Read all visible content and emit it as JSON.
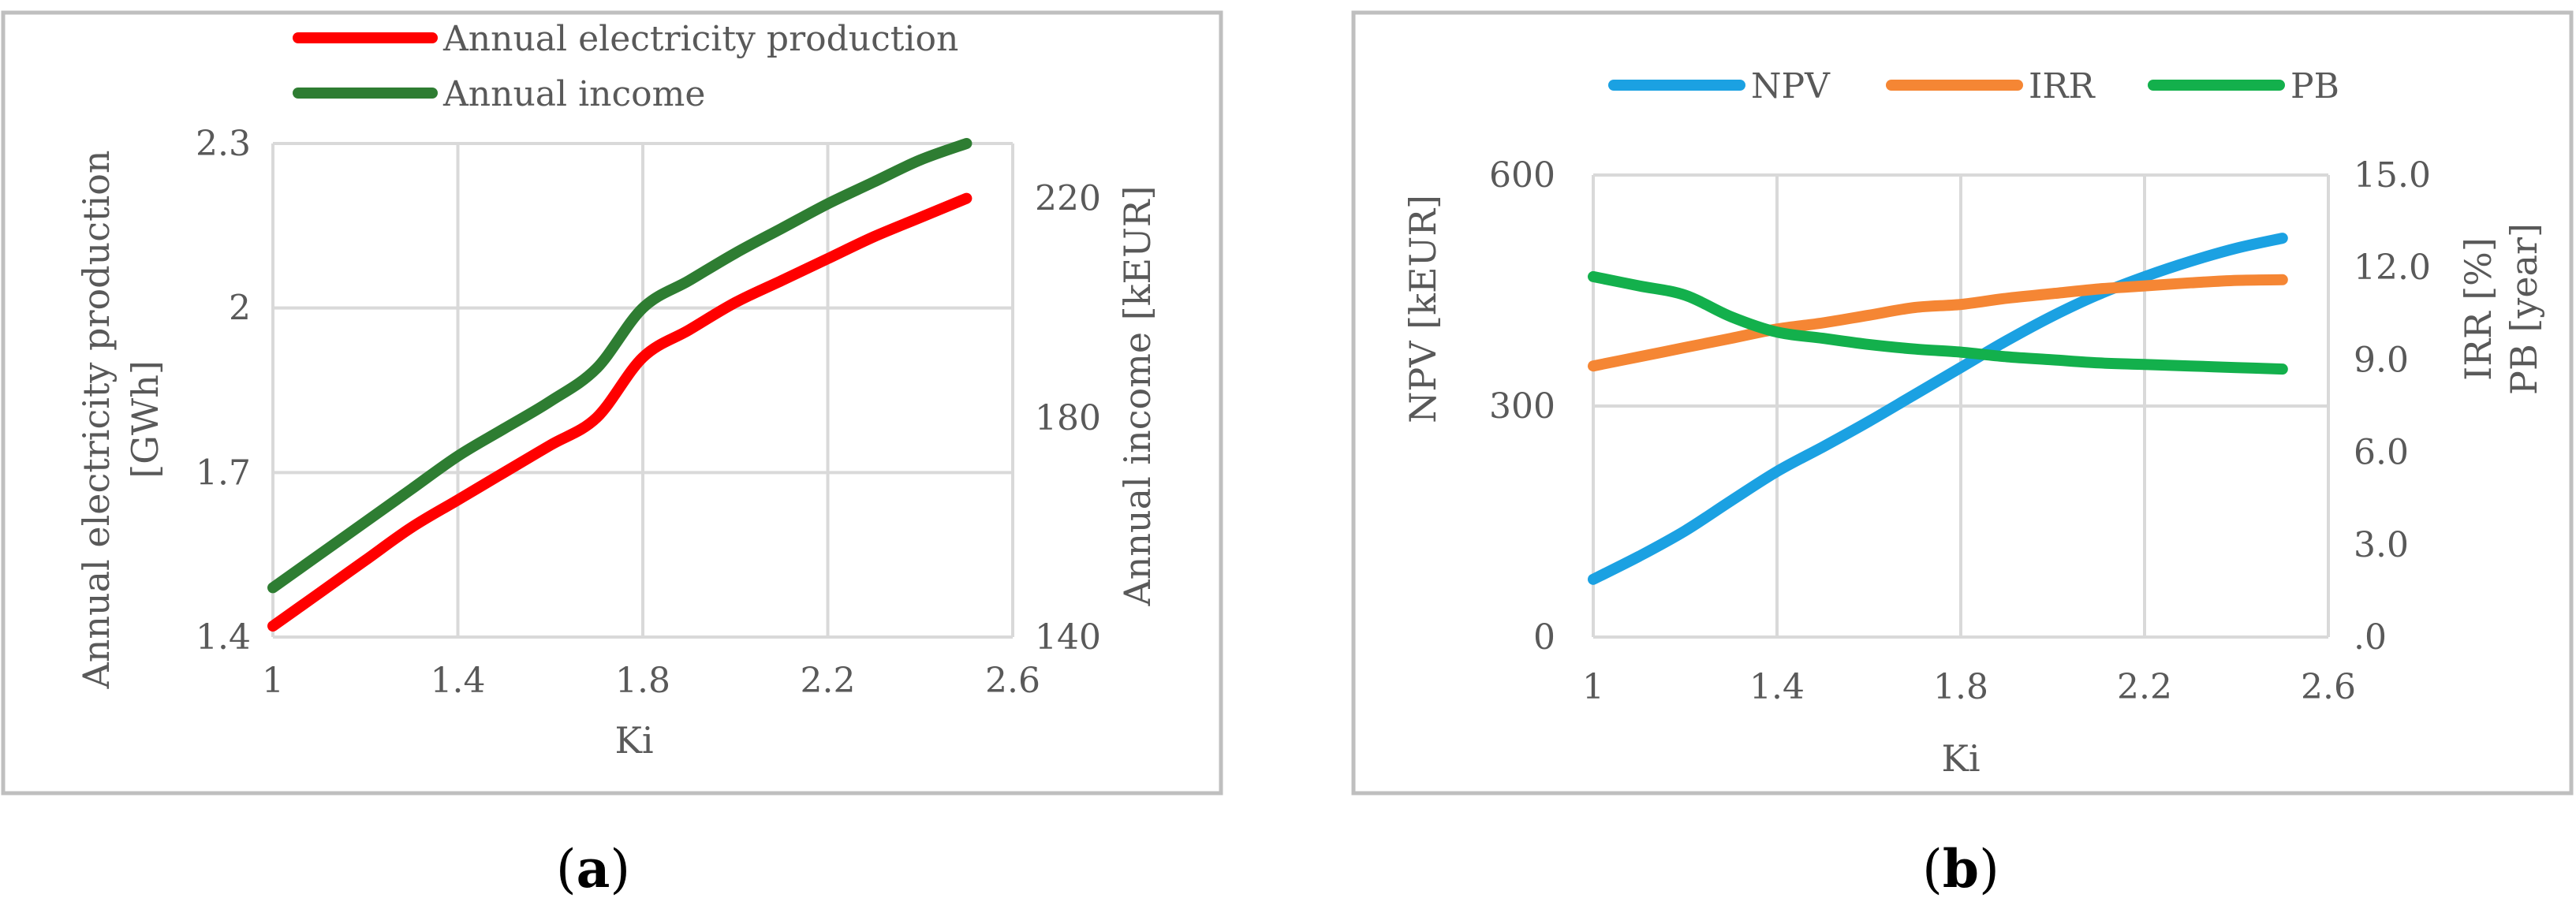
{
  "colors": {
    "production": "#ff0000",
    "income": "#2e7d32",
    "npv": "#1ba1e2",
    "irr": "#f58634",
    "pb": "#13b04c",
    "grid": "#d9d9d9",
    "text": "#595959",
    "frame": "#bfbfbf"
  },
  "chart_data": [
    {
      "id": "a",
      "type": "line",
      "panel_label_prefix": "(",
      "panel_label_letter": "a",
      "panel_label_suffix": ")",
      "legend_position": "top",
      "x": [
        1.0,
        1.1,
        1.2,
        1.3,
        1.4,
        1.5,
        1.6,
        1.7,
        1.8,
        1.9,
        2.0,
        2.1,
        2.2,
        2.3,
        2.4,
        2.5
      ],
      "xlabel": "Ki",
      "xlim": [
        1,
        2.6
      ],
      "xticks": [
        "1",
        "1.4",
        "1.8",
        "2.2",
        "2.6"
      ],
      "ylabel_left_line1": "Annual electricity production",
      "ylabel_left_line2": "[GWh]",
      "ylim_left": [
        1.4,
        2.3
      ],
      "yticks_left": [
        "1.4",
        "1.7",
        "2",
        "2.3"
      ],
      "ylabel_right": "Annual income [kEUR]",
      "ylim_right": [
        140,
        230
      ],
      "yticks_right": [
        "140",
        "180",
        "220"
      ],
      "grid": true,
      "series": [
        {
          "name": "Annual electricity production",
          "axis": "left",
          "color_key": "production",
          "values": [
            1.42,
            1.48,
            1.54,
            1.6,
            1.65,
            1.7,
            1.75,
            1.8,
            1.91,
            1.96,
            2.01,
            2.05,
            2.09,
            2.13,
            2.165,
            2.2
          ]
        },
        {
          "name": "Annual income",
          "axis": "right",
          "color_key": "income",
          "values": [
            149,
            155,
            161,
            167,
            173,
            178,
            183,
            189,
            200,
            205,
            210,
            214.5,
            219,
            223,
            227,
            230
          ]
        }
      ]
    },
    {
      "id": "b",
      "type": "line",
      "panel_label_prefix": "(",
      "panel_label_letter": "b",
      "panel_label_suffix": ")",
      "legend_position": "top",
      "x": [
        1.0,
        1.1,
        1.2,
        1.3,
        1.4,
        1.5,
        1.6,
        1.7,
        1.8,
        1.9,
        2.0,
        2.1,
        2.2,
        2.3,
        2.4,
        2.5
      ],
      "xlabel": "Ki",
      "xlim": [
        1,
        2.6
      ],
      "xticks": [
        "1",
        "1.4",
        "1.8",
        "2.2",
        "2.6"
      ],
      "ylabel_left": "NPV [kEUR]",
      "ylim_left": [
        0,
        600
      ],
      "yticks_left": [
        "0",
        "300",
        "600"
      ],
      "ylabel_right_line1": "IRR [%]",
      "ylabel_right_line2": "PB [year]",
      "ylim_right": [
        0,
        15
      ],
      "yticks_right": [
        ".0",
        "3.0",
        "6.0",
        "9.0",
        "12.0",
        "15.0"
      ],
      "grid": true,
      "series": [
        {
          "name": "NPV",
          "axis": "left",
          "color_key": "npv",
          "values": [
            75,
            105,
            138,
            177,
            215,
            247,
            280,
            315,
            350,
            385,
            417,
            445,
            468,
            488,
            505,
            518
          ]
        },
        {
          "name": "IRR",
          "axis": "right",
          "color_key": "irr",
          "values": [
            8.8,
            9.1,
            9.4,
            9.7,
            10.0,
            10.2,
            10.45,
            10.7,
            10.8,
            11.0,
            11.15,
            11.3,
            11.4,
            11.5,
            11.58,
            11.6
          ]
        },
        {
          "name": "PB",
          "axis": "right",
          "color_key": "pb",
          "values": [
            11.7,
            11.4,
            11.1,
            10.4,
            9.9,
            9.7,
            9.5,
            9.35,
            9.25,
            9.1,
            9.0,
            8.9,
            8.85,
            8.8,
            8.75,
            8.7
          ]
        }
      ]
    }
  ]
}
